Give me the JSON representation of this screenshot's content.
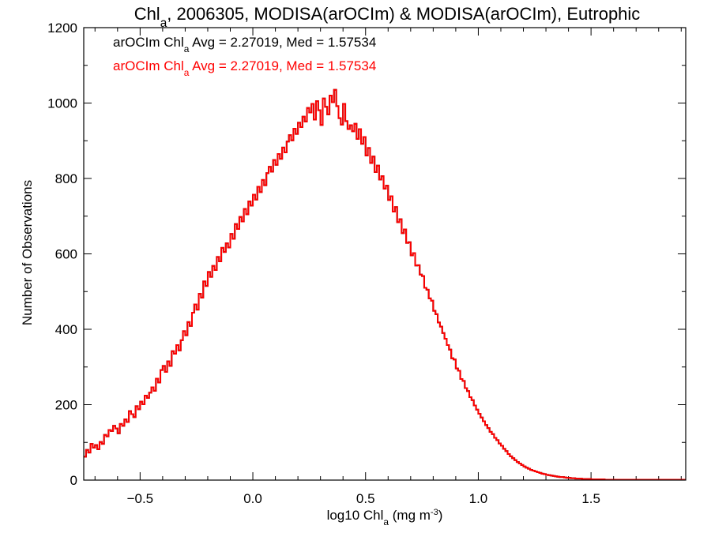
{
  "chart_data": {
    "type": "histogram-step",
    "title": {
      "parts": [
        {
          "text": "Chl",
          "sub": false
        },
        {
          "text": "a",
          "sub": true
        },
        {
          "text": ", 2006305, MODISA(arOCIm) & MODISA(arOCIm), Eutrophic",
          "sub": false
        }
      ]
    },
    "xlabel": {
      "parts": [
        {
          "text": "log10 Chl",
          "sub": false
        },
        {
          "text": "a",
          "sub": true
        },
        {
          "text": " (mg m",
          "sub": false
        },
        {
          "text": "-3",
          "sup": true
        },
        {
          "text": ")",
          "sub": false
        }
      ]
    },
    "ylabel": "Number of Observations",
    "xlim": [
      -0.75,
      1.92
    ],
    "ylim": [
      0,
      1200
    ],
    "x_ticks": [
      -0.5,
      0.0,
      0.5,
      1.0,
      1.5
    ],
    "x_tick_labels": [
      "−0.5",
      "0.0",
      "0.5",
      "1.0",
      "1.5"
    ],
    "y_ticks": [
      0,
      200,
      400,
      600,
      800,
      1000,
      1200
    ],
    "y_tick_labels": [
      "0",
      "200",
      "400",
      "600",
      "800",
      "1000",
      "1200"
    ],
    "annotations": [
      {
        "color": "#000000",
        "parts": [
          {
            "text": "arOCIm Chl",
            "sub": false
          },
          {
            "text": "a",
            "sub": true
          },
          {
            "text": " Avg = 2.27019, Med = 1.57534",
            "sub": false
          }
        ]
      },
      {
        "color": "#ff0000",
        "parts": [
          {
            "text": "arOCIm Chl",
            "sub": false
          },
          {
            "text": "a",
            "sub": true
          },
          {
            "text": " Avg = 2.27019, Med = 1.57534",
            "sub": false
          }
        ]
      }
    ],
    "series": [
      {
        "color": "#ff0000",
        "overlaid_color": "#000000",
        "bin_width": 0.01,
        "bin_start": -0.75,
        "values": [
          62,
          80,
          73,
          96,
          86,
          93,
          82,
          101,
          96,
          120,
          116,
          133,
          130,
          144,
          137,
          124,
          149,
          144,
          161,
          154,
          183,
          175,
          167,
          196,
          188,
          208,
          201,
          224,
          218,
          232,
          246,
          237,
          269,
          259,
          292,
          303,
          287,
          315,
          303,
          342,
          335,
          358,
          344,
          371,
          395,
          384,
          419,
          409,
          444,
          466,
          452,
          494,
          484,
          527,
          515,
          552,
          539,
          568,
          557,
          592,
          580,
          616,
          605,
          628,
          617,
          653,
          640,
          679,
          666,
          698,
          686,
          719,
          705,
          739,
          728,
          757,
          744,
          778,
          764,
          796,
          782,
          814,
          831,
          818,
          849,
          836,
          865,
          852,
          882,
          869,
          898,
          915,
          901,
          932,
          918,
          948,
          936,
          964,
          951,
          987,
          975,
          998,
          956,
          1005,
          981,
          942,
          1012,
          990,
          970,
          1020,
          1002,
          1035,
          992,
          960,
          943,
          998,
          952,
          931,
          941,
          925,
          945,
          905,
          931,
          892,
          910,
          861,
          881,
          841,
          858,
          817,
          834,
          797,
          806,
          773,
          781,
          743,
          753,
          712,
          724,
          684,
          692,
          655,
          665,
          629,
          631,
          596,
          602,
          569,
          570,
          545,
          541,
          510,
          505,
          482,
          476,
          449,
          440,
          418,
          407,
          390,
          375,
          358,
          346,
          323,
          320,
          296,
          290,
          268,
          263,
          244,
          236,
          220,
          212,
          198,
          187,
          176,
          166,
          156,
          146,
          138,
          128,
          122,
          112,
          106,
          97,
          91,
          83,
          77,
          69,
          63,
          58,
          53,
          48,
          44,
          40,
          36,
          33,
          30,
          27,
          25,
          23,
          21,
          19,
          17,
          16,
          14,
          13,
          12,
          11,
          10,
          9,
          8,
          8,
          7,
          6,
          6,
          5,
          5,
          4,
          4,
          4,
          3,
          3,
          3,
          3,
          2,
          2,
          2,
          2,
          2,
          2,
          1,
          1,
          1,
          1,
          1,
          1,
          1,
          1,
          1,
          1,
          1,
          1,
          1,
          1,
          1,
          1,
          1,
          1,
          1,
          1,
          1,
          1,
          1,
          1,
          1,
          1,
          1,
          1,
          1,
          1,
          1,
          1,
          1,
          1,
          1,
          1,
          1,
          1,
          1,
          1,
          1
        ]
      }
    ]
  }
}
